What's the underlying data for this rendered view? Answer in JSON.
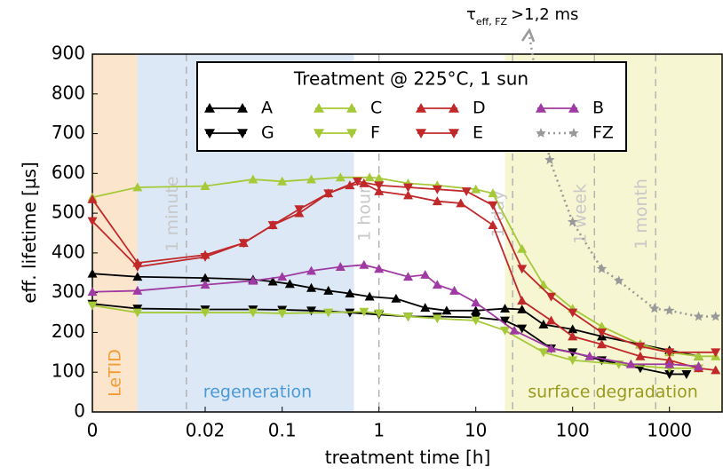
{
  "chart_data": {
    "type": "line",
    "xlabel": "treatment time [h]",
    "ylabel": "eff. lifetime [µs]",
    "xlim": [
      0,
      3500
    ],
    "x_linear_until": 0.02,
    "ylim": [
      0,
      900
    ],
    "xticks": [
      0,
      0.02,
      0.1,
      1,
      10,
      100,
      1000
    ],
    "yticks": [
      0,
      100,
      200,
      300,
      400,
      500,
      600,
      700,
      800,
      900
    ],
    "regions": [
      {
        "label": "LeTID",
        "range": [
          0,
          0.008
        ],
        "color": "#fbe5cc",
        "label_color": "#f39c32"
      },
      {
        "label": "regeneration",
        "range": [
          0.008,
          0.55
        ],
        "color": "#dce8f5",
        "label_color": "#4a9ad8"
      },
      {
        "label": "surface degradation",
        "range": [
          20,
          3500
        ],
        "color": "#f6f6d2",
        "label_color": "#9a9a20"
      }
    ],
    "time_marks": [
      {
        "label": "1 minute",
        "x": 0.01667
      },
      {
        "label": "1 hour",
        "x": 1
      },
      {
        "label": "1 day",
        "x": 24
      },
      {
        "label": "1 week",
        "x": 168
      },
      {
        "label": "1 month",
        "x": 720
      }
    ],
    "annotation": {
      "symbol": "τ",
      "subscript": "eff, FZ",
      "text": ">1,2 ms"
    },
    "legend_title": "Treatment @ 225°C, 1 sun",
    "series": [
      {
        "name": "A",
        "color": "#000000",
        "marker": "up",
        "x": [
          0,
          0.008,
          0.02,
          0.05,
          0.08,
          0.12,
          0.2,
          0.3,
          0.5,
          0.8,
          1.5,
          3,
          5,
          10,
          20,
          30,
          50,
          100,
          200,
          500,
          1000,
          2000
        ],
        "values": [
          348,
          340,
          337,
          333,
          328,
          322,
          312,
          305,
          298,
          290,
          285,
          262,
          255,
          255,
          260,
          258,
          220,
          208,
          190,
          170,
          155,
          140
        ]
      },
      {
        "name": "G",
        "color": "#000000",
        "marker": "down",
        "x": [
          0,
          0.008,
          0.02,
          0.05,
          0.1,
          0.2,
          0.5,
          1,
          2,
          4,
          10,
          20,
          30,
          60,
          100,
          200,
          500,
          1000,
          1500
        ],
        "values": [
          272,
          260,
          258,
          258,
          257,
          255,
          250,
          245,
          240,
          240,
          238,
          230,
          210,
          160,
          150,
          130,
          110,
          95,
          95
        ]
      },
      {
        "name": "C",
        "color": "#a6c93a",
        "marker": "up",
        "x": [
          0,
          0.008,
          0.02,
          0.05,
          0.1,
          0.2,
          0.4,
          0.8,
          1,
          2,
          4,
          10,
          15,
          30,
          50,
          100,
          200,
          500,
          1000,
          2000,
          3000
        ],
        "values": [
          540,
          565,
          568,
          585,
          580,
          585,
          590,
          590,
          588,
          575,
          570,
          560,
          550,
          410,
          320,
          260,
          215,
          170,
          150,
          140,
          140
        ]
      },
      {
        "name": "F",
        "color": "#a6c93a",
        "marker": "down",
        "x": [
          0,
          0.008,
          0.02,
          0.05,
          0.1,
          0.3,
          0.7,
          1,
          2,
          4,
          10,
          20,
          50,
          100,
          300,
          1000,
          2000
        ],
        "values": [
          268,
          250,
          250,
          250,
          248,
          250,
          252,
          248,
          240,
          235,
          230,
          205,
          150,
          130,
          120,
          110,
          110
        ]
      },
      {
        "name": "D",
        "color": "#c0282a",
        "marker": "up",
        "x": [
          0,
          0.008,
          0.02,
          0.04,
          0.08,
          0.15,
          0.3,
          0.5,
          0.7,
          1,
          2,
          4,
          7,
          15,
          30,
          60,
          100,
          200,
          500,
          1000,
          2000,
          3000
        ],
        "values": [
          535,
          375,
          395,
          425,
          470,
          500,
          550,
          570,
          575,
          555,
          545,
          530,
          525,
          470,
          280,
          230,
          190,
          170,
          140,
          130,
          110,
          105
        ]
      },
      {
        "name": "E",
        "color": "#c0282a",
        "marker": "down",
        "x": [
          0,
          0.008,
          0.02,
          0.04,
          0.08,
          0.15,
          0.3,
          0.6,
          1,
          2,
          4,
          8,
          15,
          30,
          60,
          100,
          200,
          500,
          1000,
          3000
        ],
        "values": [
          480,
          365,
          390,
          425,
          470,
          510,
          550,
          580,
          570,
          565,
          560,
          555,
          520,
          360,
          290,
          250,
          200,
          165,
          150,
          150
        ]
      },
      {
        "name": "B",
        "color": "#a03aa3",
        "marker": "up",
        "x": [
          0,
          0.008,
          0.02,
          0.05,
          0.1,
          0.2,
          0.4,
          0.7,
          1,
          2,
          3,
          4,
          6,
          10,
          25,
          60,
          150,
          400,
          1000,
          2000
        ],
        "values": [
          302,
          305,
          320,
          330,
          340,
          355,
          365,
          370,
          360,
          340,
          345,
          320,
          305,
          275,
          205,
          160,
          140,
          120,
          120,
          115
        ]
      },
      {
        "name": "FZ",
        "color": "#999999",
        "marker": "star",
        "dotted": true,
        "x": [
          58,
          100,
          200,
          300,
          700,
          1000,
          2000,
          3000
        ],
        "values": [
          634,
          478,
          360,
          330,
          260,
          255,
          240,
          240
        ]
      }
    ]
  }
}
